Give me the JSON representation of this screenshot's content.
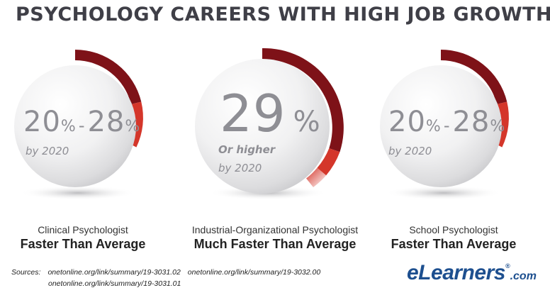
{
  "title": "PSYCHOLOGY CAREERS WITH HIGH JOB GROWTH",
  "colors": {
    "dark_red": "#7e1218",
    "light_red": "#d4362a",
    "text_gray": "#8e8e94"
  },
  "chart_data": [
    {
      "type": "gauge",
      "role": "Clinical Psychologist",
      "rate": "Faster Than Average",
      "growth_low_pct": 20,
      "growth_high_pct": 28,
      "low_num": "20",
      "low_pct": "%",
      "dash": "-",
      "high_num": "28",
      "high_pct": "%",
      "qualifier": "",
      "by_year": "by 2020"
    },
    {
      "type": "gauge",
      "role": "Industrial-Organizational Psychologist",
      "rate": "Much Faster Than Average",
      "growth_low_pct": 29,
      "growth_high_pct": null,
      "low_num": "29",
      "low_pct": "%",
      "qualifier": "Or higher",
      "by_year": "by 2020"
    },
    {
      "type": "gauge",
      "role": "School Psychologist",
      "rate": "Faster Than Average",
      "growth_low_pct": 20,
      "growth_high_pct": 28,
      "low_num": "20",
      "low_pct": "%",
      "dash": "-",
      "high_num": "28",
      "high_pct": "%",
      "qualifier": "",
      "by_year": "by 2020"
    }
  ],
  "sources": {
    "label": "Sources:",
    "links": [
      "onetonline.org/link/summary/19-3031.02",
      "onetonline.org/link/summary/19-3032.00",
      "onetonline.org/link/summary/19-3031.01"
    ]
  },
  "logo": {
    "main": "eLearners",
    "reg": "®",
    "suffix": ".com"
  }
}
